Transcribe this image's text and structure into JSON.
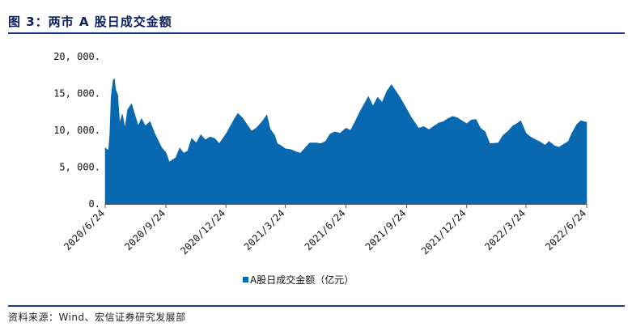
{
  "title": "图 3：两市 A 股日成交金额",
  "source": "资料来源：Wind、宏信证券研究发展部",
  "colors": {
    "area": "#0868b0",
    "rule": "#1b3a8c",
    "title": "#0a1f5c"
  },
  "chart_data": {
    "type": "area",
    "legend": {
      "placement": "bottom-center",
      "label": "A股日成交金额（亿元）"
    },
    "grid": false,
    "ylim": [
      0,
      20000
    ],
    "xlim": [
      "2020-06-24",
      "2022-06-24"
    ],
    "y_ticks": [
      {
        "value": 0,
        "label": "0."
      },
      {
        "value": 5000,
        "label": "5, 000."
      },
      {
        "value": 10000,
        "label": "10, 000."
      },
      {
        "value": 15000,
        "label": "15, 000."
      },
      {
        "value": 20000,
        "label": "20, 000."
      }
    ],
    "x_ticks": [
      {
        "value": "2020-06-24",
        "label": "2020/6/24"
      },
      {
        "value": "2020-09-24",
        "label": "2020/9/24"
      },
      {
        "value": "2020-12-24",
        "label": "2020/12/24"
      },
      {
        "value": "2021-03-24",
        "label": "2021/3/24"
      },
      {
        "value": "2021-06-24",
        "label": "2021/6/24"
      },
      {
        "value": "2021-09-24",
        "label": "2021/9/24"
      },
      {
        "value": "2021-12-24",
        "label": "2021/12/24"
      },
      {
        "value": "2022-03-24",
        "label": "2022/3/24"
      },
      {
        "value": "2022-06-24",
        "label": "2022/6/24"
      }
    ],
    "series": [
      {
        "name": "A股日成交金额（亿元）",
        "points": [
          [
            "2020-06-24",
            7600
          ],
          [
            "2020-06-29",
            7300
          ],
          [
            "2020-07-01",
            9500
          ],
          [
            "2020-07-03",
            14500
          ],
          [
            "2020-07-06",
            16800
          ],
          [
            "2020-07-08",
            17000
          ],
          [
            "2020-07-10",
            15500
          ],
          [
            "2020-07-13",
            14800
          ],
          [
            "2020-07-16",
            11000
          ],
          [
            "2020-07-20",
            12200
          ],
          [
            "2020-07-24",
            10300
          ],
          [
            "2020-07-28",
            12800
          ],
          [
            "2020-08-03",
            13600
          ],
          [
            "2020-08-07",
            12400
          ],
          [
            "2020-08-13",
            10600
          ],
          [
            "2020-08-18",
            11600
          ],
          [
            "2020-08-24",
            10600
          ],
          [
            "2020-08-31",
            11200
          ],
          [
            "2020-09-07",
            9600
          ],
          [
            "2020-09-14",
            8300
          ],
          [
            "2020-09-18",
            7600
          ],
          [
            "2020-09-24",
            7000
          ],
          [
            "2020-09-29",
            5700
          ],
          [
            "2020-10-09",
            6300
          ],
          [
            "2020-10-15",
            7600
          ],
          [
            "2020-10-21",
            6900
          ],
          [
            "2020-10-27",
            7200
          ],
          [
            "2020-11-02",
            8900
          ],
          [
            "2020-11-09",
            8300
          ],
          [
            "2020-11-16",
            9400
          ],
          [
            "2020-11-23",
            8700
          ],
          [
            "2020-11-30",
            9100
          ],
          [
            "2020-12-07",
            8900
          ],
          [
            "2020-12-14",
            8200
          ],
          [
            "2020-12-24",
            9500
          ],
          [
            "2021-01-05",
            11400
          ],
          [
            "2021-01-11",
            12300
          ],
          [
            "2021-01-18",
            11700
          ],
          [
            "2021-01-25",
            10800
          ],
          [
            "2021-02-01",
            9900
          ],
          [
            "2021-02-08",
            10300
          ],
          [
            "2021-02-18",
            11300
          ],
          [
            "2021-02-24",
            12100
          ],
          [
            "2021-03-01",
            10200
          ],
          [
            "2021-03-08",
            9300
          ],
          [
            "2021-03-12",
            8200
          ],
          [
            "2021-03-18",
            7900
          ],
          [
            "2021-03-24",
            7500
          ],
          [
            "2021-04-01",
            7400
          ],
          [
            "2021-04-09",
            7100
          ],
          [
            "2021-04-16",
            6900
          ],
          [
            "2021-04-23",
            7600
          ],
          [
            "2021-04-30",
            8300
          ],
          [
            "2021-05-10",
            8300
          ],
          [
            "2021-05-17",
            8200
          ],
          [
            "2021-05-24",
            8500
          ],
          [
            "2021-05-31",
            9500
          ],
          [
            "2021-06-07",
            9800
          ],
          [
            "2021-06-15",
            9600
          ],
          [
            "2021-06-24",
            10300
          ],
          [
            "2021-07-01",
            10000
          ],
          [
            "2021-07-08",
            11200
          ],
          [
            "2021-07-15",
            12500
          ],
          [
            "2021-07-22",
            13600
          ],
          [
            "2021-07-28",
            14600
          ],
          [
            "2021-08-04",
            13300
          ],
          [
            "2021-08-11",
            14500
          ],
          [
            "2021-08-18",
            13800
          ],
          [
            "2021-08-25",
            15300
          ],
          [
            "2021-09-01",
            16200
          ],
          [
            "2021-09-08",
            15300
          ],
          [
            "2021-09-15",
            14300
          ],
          [
            "2021-09-24",
            12900
          ],
          [
            "2021-09-30",
            11900
          ],
          [
            "2021-10-12",
            10300
          ],
          [
            "2021-10-20",
            10500
          ],
          [
            "2021-10-28",
            10100
          ],
          [
            "2021-11-05",
            10600
          ],
          [
            "2021-11-12",
            11000
          ],
          [
            "2021-11-19",
            11200
          ],
          [
            "2021-11-26",
            11600
          ],
          [
            "2021-12-03",
            11900
          ],
          [
            "2021-12-10",
            11700
          ],
          [
            "2021-12-17",
            11300
          ],
          [
            "2021-12-24",
            10900
          ],
          [
            "2021-12-31",
            11400
          ],
          [
            "2022-01-07",
            11500
          ],
          [
            "2022-01-14",
            10300
          ],
          [
            "2022-01-21",
            9800
          ],
          [
            "2022-01-28",
            8200
          ],
          [
            "2022-02-10",
            8300
          ],
          [
            "2022-02-17",
            9300
          ],
          [
            "2022-02-25",
            9900
          ],
          [
            "2022-03-04",
            10600
          ],
          [
            "2022-03-10",
            10900
          ],
          [
            "2022-03-16",
            11300
          ],
          [
            "2022-03-24",
            9600
          ],
          [
            "2022-03-31",
            9100
          ],
          [
            "2022-04-08",
            8700
          ],
          [
            "2022-04-15",
            8400
          ],
          [
            "2022-04-22",
            8000
          ],
          [
            "2022-04-28",
            8500
          ],
          [
            "2022-05-06",
            7900
          ],
          [
            "2022-05-13",
            7700
          ],
          [
            "2022-05-20",
            8100
          ],
          [
            "2022-05-27",
            8500
          ],
          [
            "2022-06-02",
            9700
          ],
          [
            "2022-06-09",
            10800
          ],
          [
            "2022-06-15",
            11300
          ],
          [
            "2022-06-24",
            11100
          ]
        ]
      }
    ]
  }
}
